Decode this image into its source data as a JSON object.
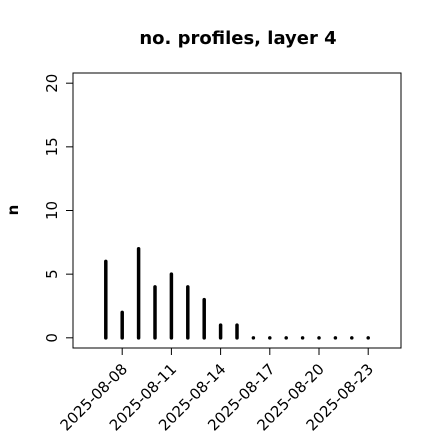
{
  "chart_data": {
    "type": "bar",
    "title": "no. profiles, layer 4",
    "y_label": "n",
    "x": [
      "2025-08-07",
      "2025-08-08",
      "2025-08-09",
      "2025-08-10",
      "2025-08-11",
      "2025-08-12",
      "2025-08-13",
      "2025-08-14",
      "2025-08-15",
      "2025-08-16",
      "2025-08-17",
      "2025-08-18",
      "2025-08-19",
      "2025-08-20",
      "2025-08-21",
      "2025-08-22",
      "2025-08-23"
    ],
    "values": [
      6,
      2,
      7,
      4,
      5,
      4,
      3,
      1,
      1,
      0,
      0,
      0,
      0,
      0,
      0,
      0,
      0
    ],
    "color": "#000000",
    "xlim": [
      "2025-08-05",
      "2025-08-25"
    ],
    "xticks": [
      "2025-08-08",
      "2025-08-11",
      "2025-08-14",
      "2025-08-17",
      "2025-08-20",
      "2025-08-23"
    ],
    "highlight_tick": "2025-08-14",
    "highlight_color": "#228b22",
    "ylim": [
      -0.8,
      20.8
    ],
    "yticks": [
      0,
      5,
      10,
      15,
      20
    ]
  }
}
